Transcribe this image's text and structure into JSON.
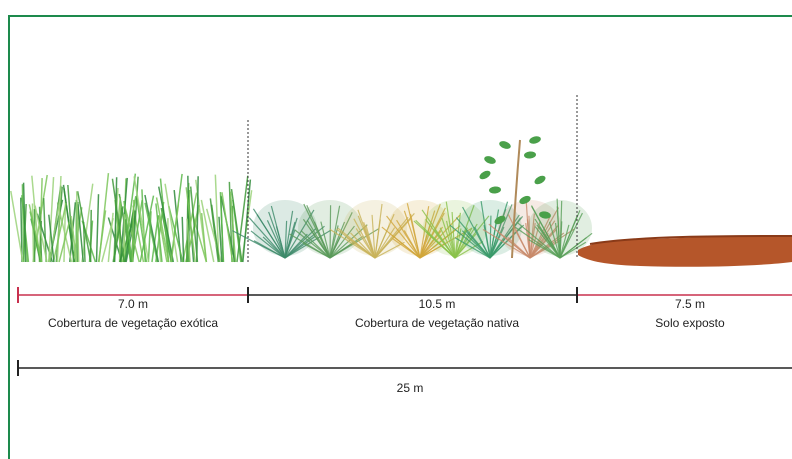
{
  "segments": [
    {
      "length": "7.0 m",
      "label": "Cobertura de vegetação exótica"
    },
    {
      "length": "10.5 m",
      "label": "Cobertura de vegetação nativa"
    },
    {
      "length": "7.5 m",
      "label": "Solo exposto"
    }
  ],
  "total": "25 m"
}
